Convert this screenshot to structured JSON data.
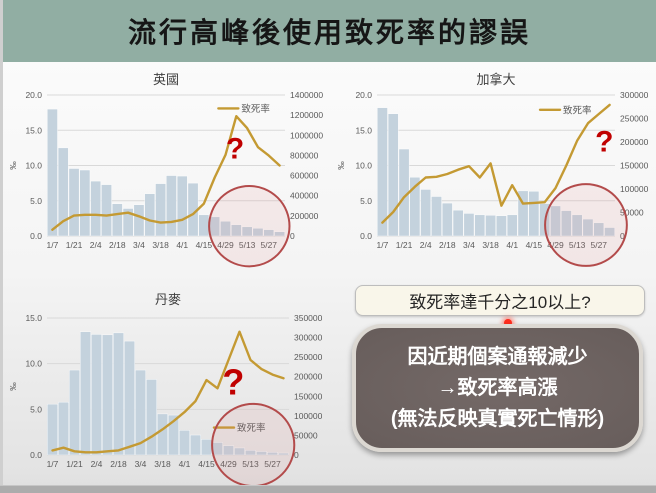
{
  "header": {
    "title": "流行高峰後使用致死率的謬誤"
  },
  "callout": {
    "text": "致死率達千分之10以上?"
  },
  "conclusion": {
    "lines": [
      "因近期個案通報減少",
      "→致死率高漲",
      "(無法反映真實死亡情形)"
    ]
  },
  "chart_data": [
    {
      "id": "uk",
      "type": "bar+line combo",
      "title": "英國",
      "x_tick_labels": [
        "1/7",
        "1/21",
        "2/4",
        "2/18",
        "3/4",
        "3/18",
        "4/1",
        "4/15",
        "4/29",
        "5/13",
        "5/27"
      ],
      "x_step": "weekly starting 1/7, 22 points",
      "left_axis": {
        "label": "‰",
        "min": 0,
        "max": 20,
        "ticks": [
          "0.0",
          "5.0",
          "10.0",
          "15.0",
          "20.0"
        ]
      },
      "right_axis": {
        "min": 0,
        "max": 1400000,
        "ticks": [
          "0",
          "200000",
          "400000",
          "600000",
          "800000",
          "1000000",
          "1200000",
          "1400000"
        ]
      },
      "bars": {
        "axis": "right",
        "values": [
          1260000,
          875000,
          670000,
          655000,
          545000,
          510000,
          320000,
          273000,
          310000,
          420000,
          520000,
          600000,
          595000,
          525000,
          210000,
          190000,
          147000,
          112000,
          91000,
          77000,
          63000,
          42000
        ]
      },
      "line": {
        "name": "致死率",
        "axis": "left",
        "values": [
          0.9,
          2.1,
          2.9,
          3.0,
          3.0,
          2.9,
          3.1,
          3.3,
          2.8,
          2.2,
          1.9,
          2.0,
          2.3,
          3.1,
          4.6,
          8.3,
          11.5,
          17.0,
          15.3,
          12.6,
          11.4,
          10.0
        ]
      },
      "legend_label": "致死率",
      "overlay": {
        "circle": {
          "cx": 0.85,
          "cy": 0.93,
          "r": 0.285
        },
        "qmark": {
          "char": "?",
          "x": 0.79,
          "y": 0.45
        },
        "legend": {
          "x": 0.72,
          "y": 0.095
        }
      }
    },
    {
      "id": "ca",
      "type": "bar+line combo",
      "title": "加拿大",
      "x_tick_labels": [
        "1/7",
        "1/21",
        "2/4",
        "2/18",
        "3/4",
        "3/18",
        "4/1",
        "4/15",
        "4/29",
        "5/13",
        "5/27"
      ],
      "x_step": "weekly starting 1/7, 22 points",
      "left_axis": {
        "label": "‰",
        "min": 0,
        "max": 20,
        "ticks": [
          "0.0",
          "5.0",
          "10.0",
          "15.0",
          "20.0"
        ]
      },
      "right_axis": {
        "min": 0,
        "max": 300000,
        "ticks": [
          "0",
          "50000",
          "100000",
          "150000",
          "200000",
          "250000",
          "300000"
        ]
      },
      "bars": {
        "axis": "right",
        "values": [
          273000,
          260000,
          185000,
          125000,
          99000,
          84000,
          70000,
          55000,
          48000,
          45000,
          44000,
          43000,
          45000,
          96000,
          95000,
          69000,
          64000,
          54000,
          45000,
          36000,
          28000,
          18000
        ]
      },
      "line": {
        "name": "致死率",
        "axis": "left",
        "values": [
          1.9,
          3.4,
          5.5,
          7.0,
          8.3,
          8.4,
          8.8,
          9.4,
          9.9,
          8.3,
          10.3,
          4.3,
          7.2,
          4.6,
          4.7,
          4.8,
          6.8,
          10.0,
          13.5,
          16.0,
          17.3,
          18.6
        ]
      },
      "legend_label": "致死率",
      "overlay": {
        "circle": {
          "cx": 0.878,
          "cy": 0.922,
          "r": 0.29
        },
        "qmark": {
          "char": "?",
          "x": 0.955,
          "y": 0.4
        },
        "legend": {
          "x": 0.685,
          "y": 0.105
        }
      }
    },
    {
      "id": "dk",
      "type": "bar+line combo",
      "title": "丹麥",
      "x_tick_labels": [
        "1/7",
        "1/21",
        "2/4",
        "2/18",
        "3/4",
        "3/18",
        "4/1",
        "4/15",
        "4/29",
        "5/13",
        "5/27"
      ],
      "x_step": "weekly starting 1/7, 22 points",
      "left_axis": {
        "label": "‰",
        "min": 0,
        "max": 15,
        "ticks": [
          "0.0",
          "5.0",
          "10.0",
          "15.0"
        ]
      },
      "right_axis": {
        "min": 0,
        "max": 350000,
        "ticks": [
          "0",
          "50000",
          "100000",
          "150000",
          "200000",
          "250000",
          "300000",
          "350000"
        ]
      },
      "bars": {
        "axis": "right",
        "values": [
          130000,
          135000,
          217000,
          315000,
          308000,
          307000,
          312000,
          291000,
          217000,
          193000,
          105000,
          102000,
          63000,
          51000,
          40000,
          32000,
          24000,
          18000,
          12000,
          9000,
          7000,
          5000
        ]
      },
      "line": {
        "name": "致死率",
        "axis": "left",
        "values": [
          0.5,
          0.8,
          0.4,
          0.3,
          0.3,
          0.4,
          0.5,
          0.9,
          1.3,
          2.0,
          2.8,
          3.7,
          4.7,
          5.9,
          8.2,
          7.3,
          10.4,
          13.5,
          10.4,
          9.4,
          8.8,
          8.4
        ]
      },
      "legend_label": "致死率",
      "overlay": {
        "circle": {
          "cx": 0.852,
          "cy": 0.927,
          "r": 0.3
        },
        "qmark": {
          "char": "?",
          "x": 0.77,
          "y": 0.56
        },
        "legend": {
          "x": 0.69,
          "y": 0.8
        }
      }
    }
  ]
}
